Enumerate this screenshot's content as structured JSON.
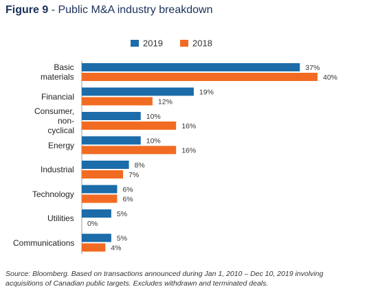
{
  "chart_data": {
    "type": "bar",
    "orientation": "horizontal",
    "figure_label": "Figure 9",
    "title": "- Public M&A industry breakdown",
    "categories": [
      "Basic materials",
      "Financial",
      "Consumer, non-cyclical",
      "Energy",
      "Industrial",
      "Technology",
      "Utilities",
      "Communications"
    ],
    "series": [
      {
        "name": "2019",
        "color": "#1b6ca8",
        "values": [
          37,
          19,
          10,
          10,
          8,
          6,
          5,
          5
        ],
        "value_labels": [
          "37%",
          "19%",
          "10%",
          "10%",
          "8%",
          "6%",
          "5%",
          "5%"
        ]
      },
      {
        "name": "2018",
        "color": "#f26b22",
        "values": [
          40,
          12,
          16,
          16,
          7,
          6,
          0,
          4
        ],
        "value_labels": [
          "40%",
          "12%",
          "16%",
          "16%",
          "7%",
          "6%",
          "0%",
          "4%"
        ]
      }
    ],
    "legend": "top",
    "note": "Source: Bloomberg. Based on transactions announced during Jan 1, 2010 – Dec 10, 2019 involving acquisitions of Canadian public targets. Excludes withdrawn and terminated deals."
  }
}
